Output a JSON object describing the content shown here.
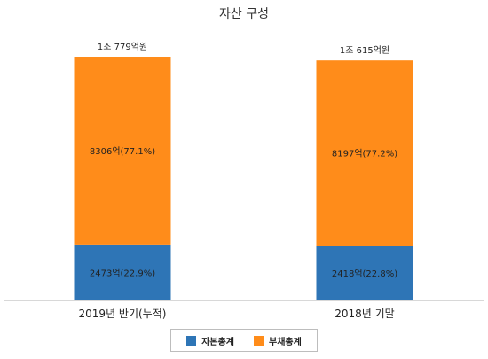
{
  "chart_data": {
    "type": "bar",
    "stacked": true,
    "title": "자산 구성",
    "categories": [
      "2019년 반기(누적)",
      "2018년 기말"
    ],
    "series": [
      {
        "name": "자본총계",
        "values": [
          2473,
          2418
        ],
        "labels": [
          "2473억(22.9%)",
          "2418억(22.8%)"
        ],
        "color": "#2e75b6"
      },
      {
        "name": "부채총계",
        "values": [
          8306,
          8197
        ],
        "labels": [
          "8306억(77.1%)",
          "8197억(77.2%)"
        ],
        "color": "#ff8c1a"
      }
    ],
    "totals": [
      "1조 779억원",
      "1조 615억원"
    ],
    "total_values": [
      10779,
      10615
    ],
    "grid": false,
    "legend_position": "bottom"
  }
}
